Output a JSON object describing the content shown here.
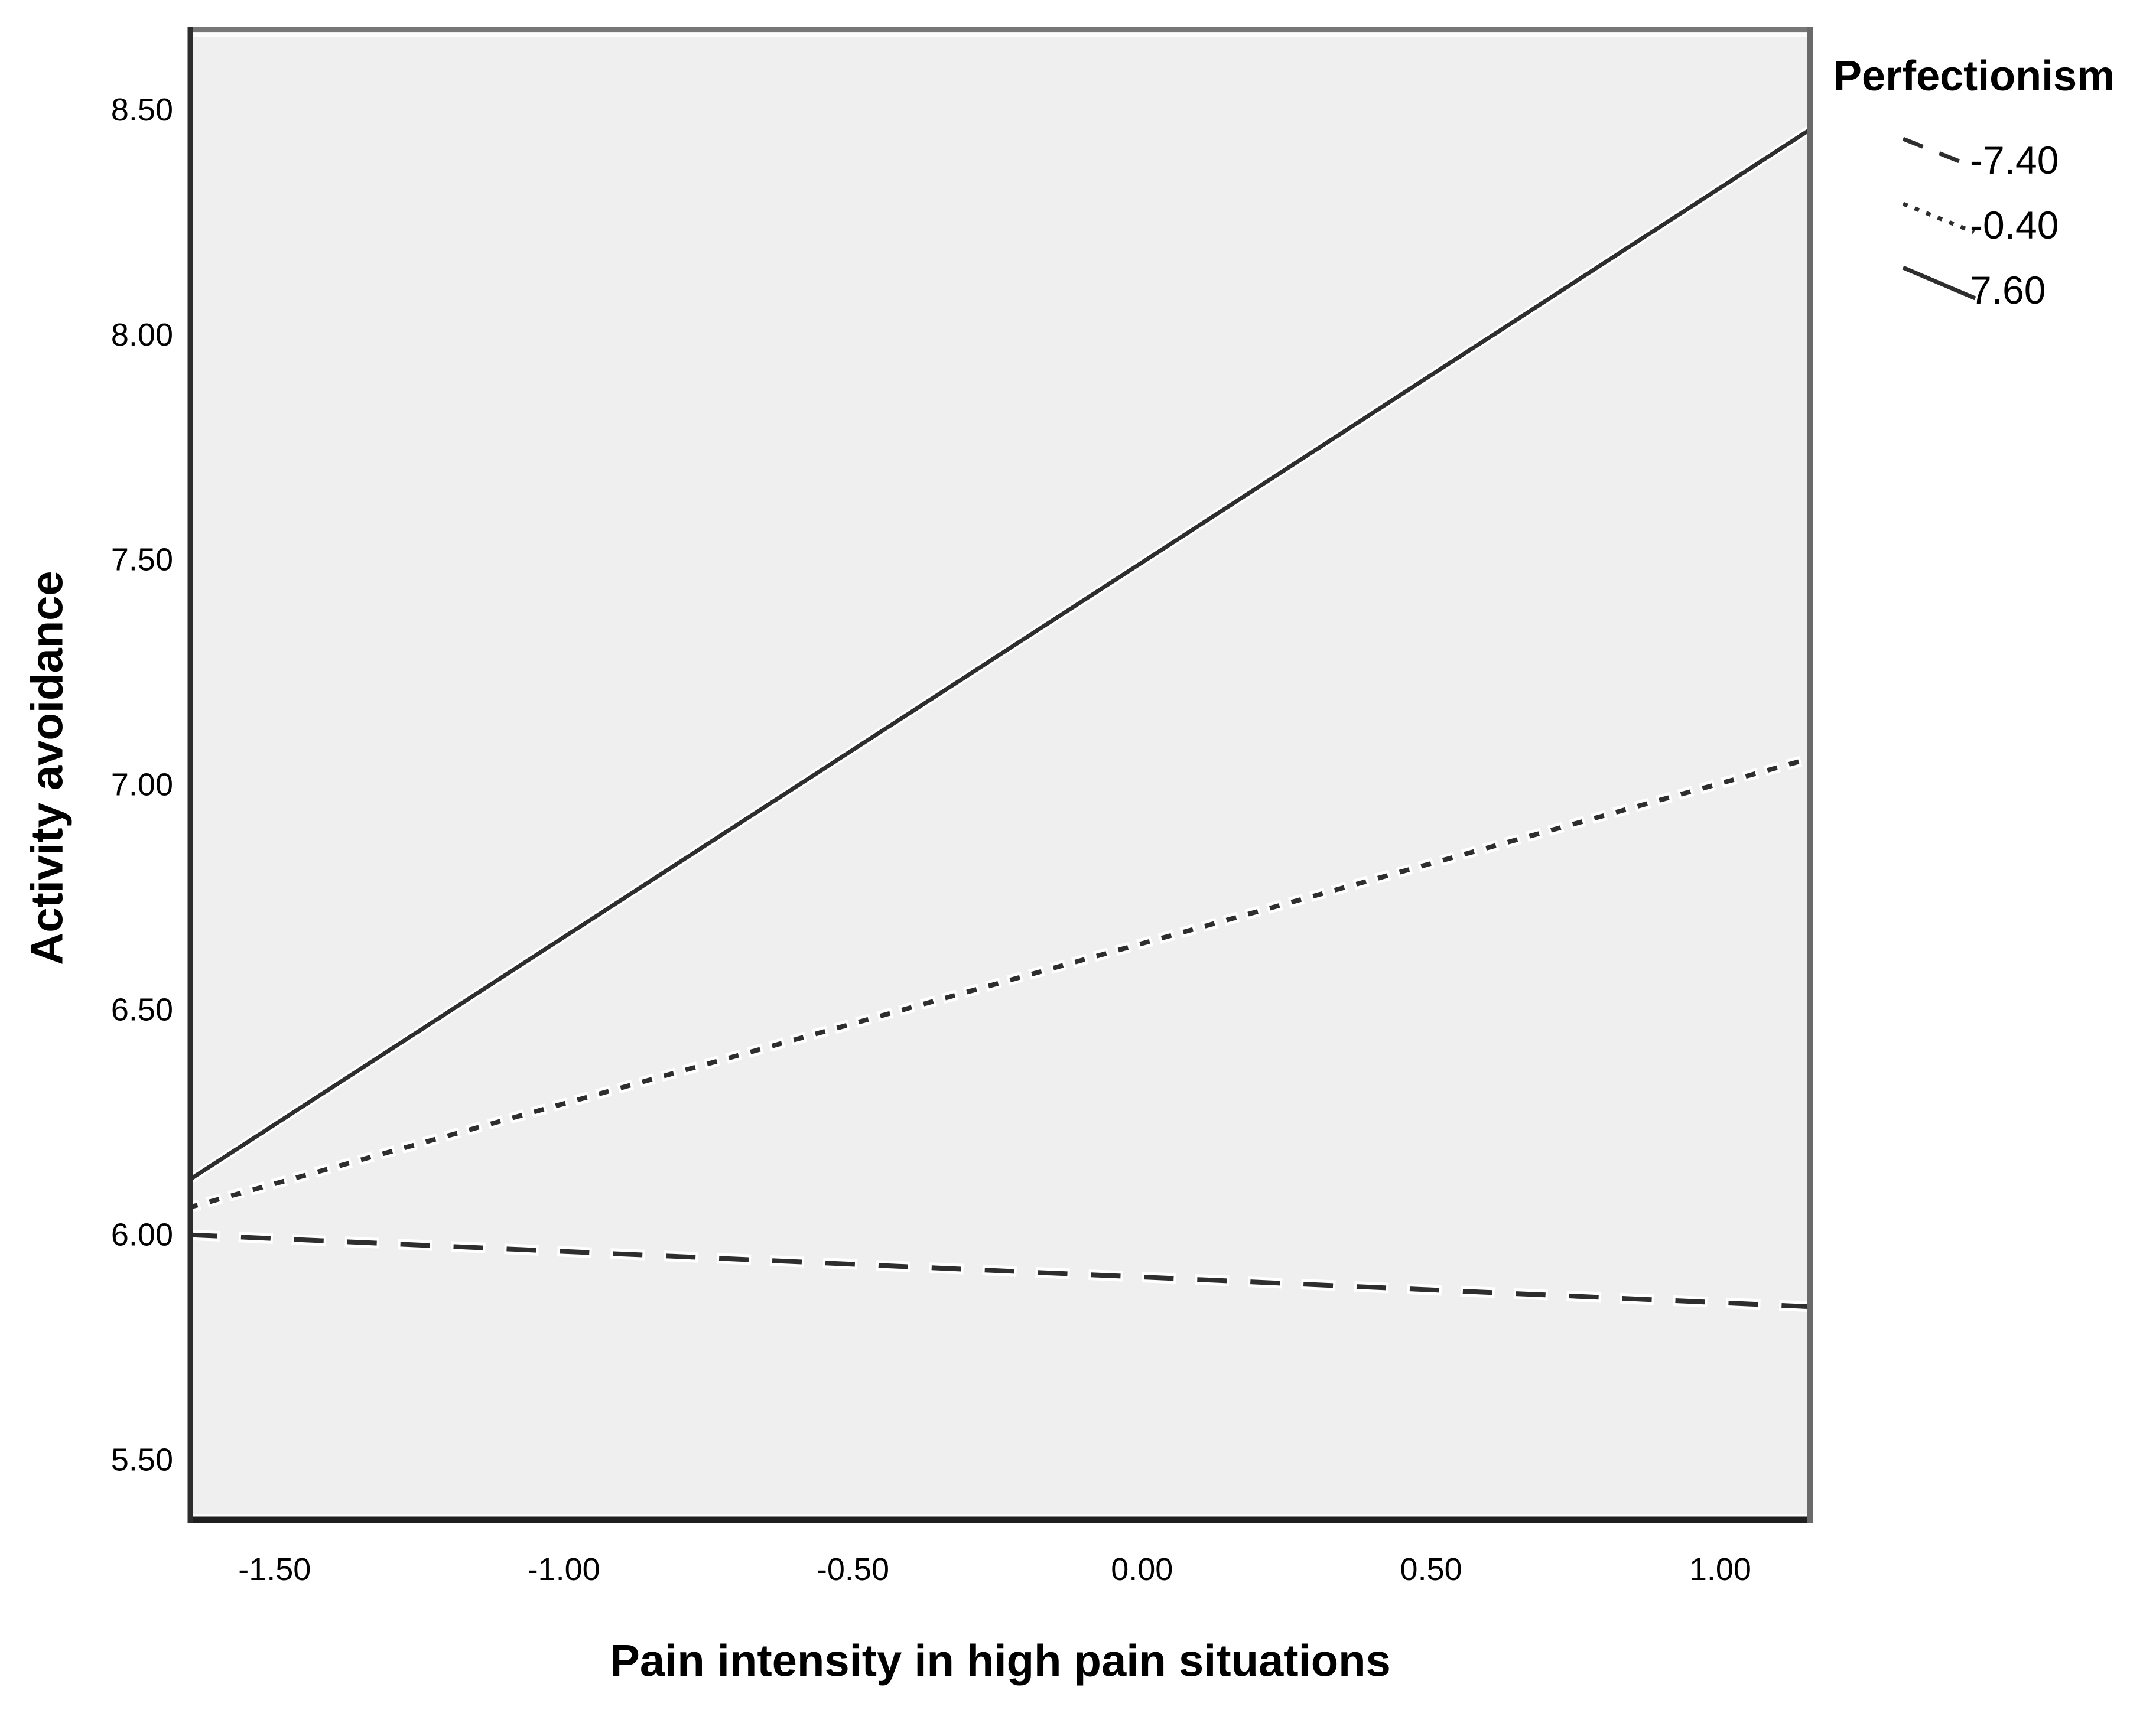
{
  "chart_data": {
    "type": "line",
    "title": "",
    "xlabel": "Pain intensity in high pain situations",
    "ylabel": "Activity avoidance",
    "legend": {
      "title": "Perfectionism",
      "position": "top-right-outside"
    },
    "grid": false,
    "xlim": [
      -1.65,
      1.16
    ],
    "ylim": [
      5.36,
      8.685
    ],
    "x_ticks": [
      {
        "value": -1.5,
        "label": "-1.50"
      },
      {
        "value": -1.0,
        "label": "-1.00"
      },
      {
        "value": -0.5,
        "label": "-0.50"
      },
      {
        "value": 0.0,
        "label": "0.00"
      },
      {
        "value": 0.5,
        "label": "0.50"
      },
      {
        "value": 1.0,
        "label": "1.00"
      }
    ],
    "y_ticks": [
      {
        "value": 5.5,
        "label": "5.50"
      },
      {
        "value": 6.0,
        "label": "6.00"
      },
      {
        "value": 6.5,
        "label": "6.50"
      },
      {
        "value": 7.0,
        "label": "7.00"
      },
      {
        "value": 7.5,
        "label": "7.50"
      },
      {
        "value": 8.0,
        "label": "8.00"
      },
      {
        "value": 8.5,
        "label": "8.50"
      }
    ],
    "series": [
      {
        "name": "-7.40",
        "style": "dashed",
        "points": [
          [
            -1.65,
            6.0
          ],
          [
            1.16,
            5.84
          ]
        ]
      },
      {
        "name": "-0.40",
        "style": "dotted",
        "points": [
          [
            -1.65,
            6.06
          ],
          [
            1.16,
            7.06
          ]
        ]
      },
      {
        "name": "7.60",
        "style": "solid",
        "points": [
          [
            -1.65,
            6.12
          ],
          [
            1.16,
            8.46
          ]
        ]
      }
    ],
    "colors": {
      "line": "#2e2e2e",
      "plot_background": "#efefef",
      "frame": "#4d4d4d",
      "text": "#000000",
      "page_background": "#ffffff"
    }
  }
}
